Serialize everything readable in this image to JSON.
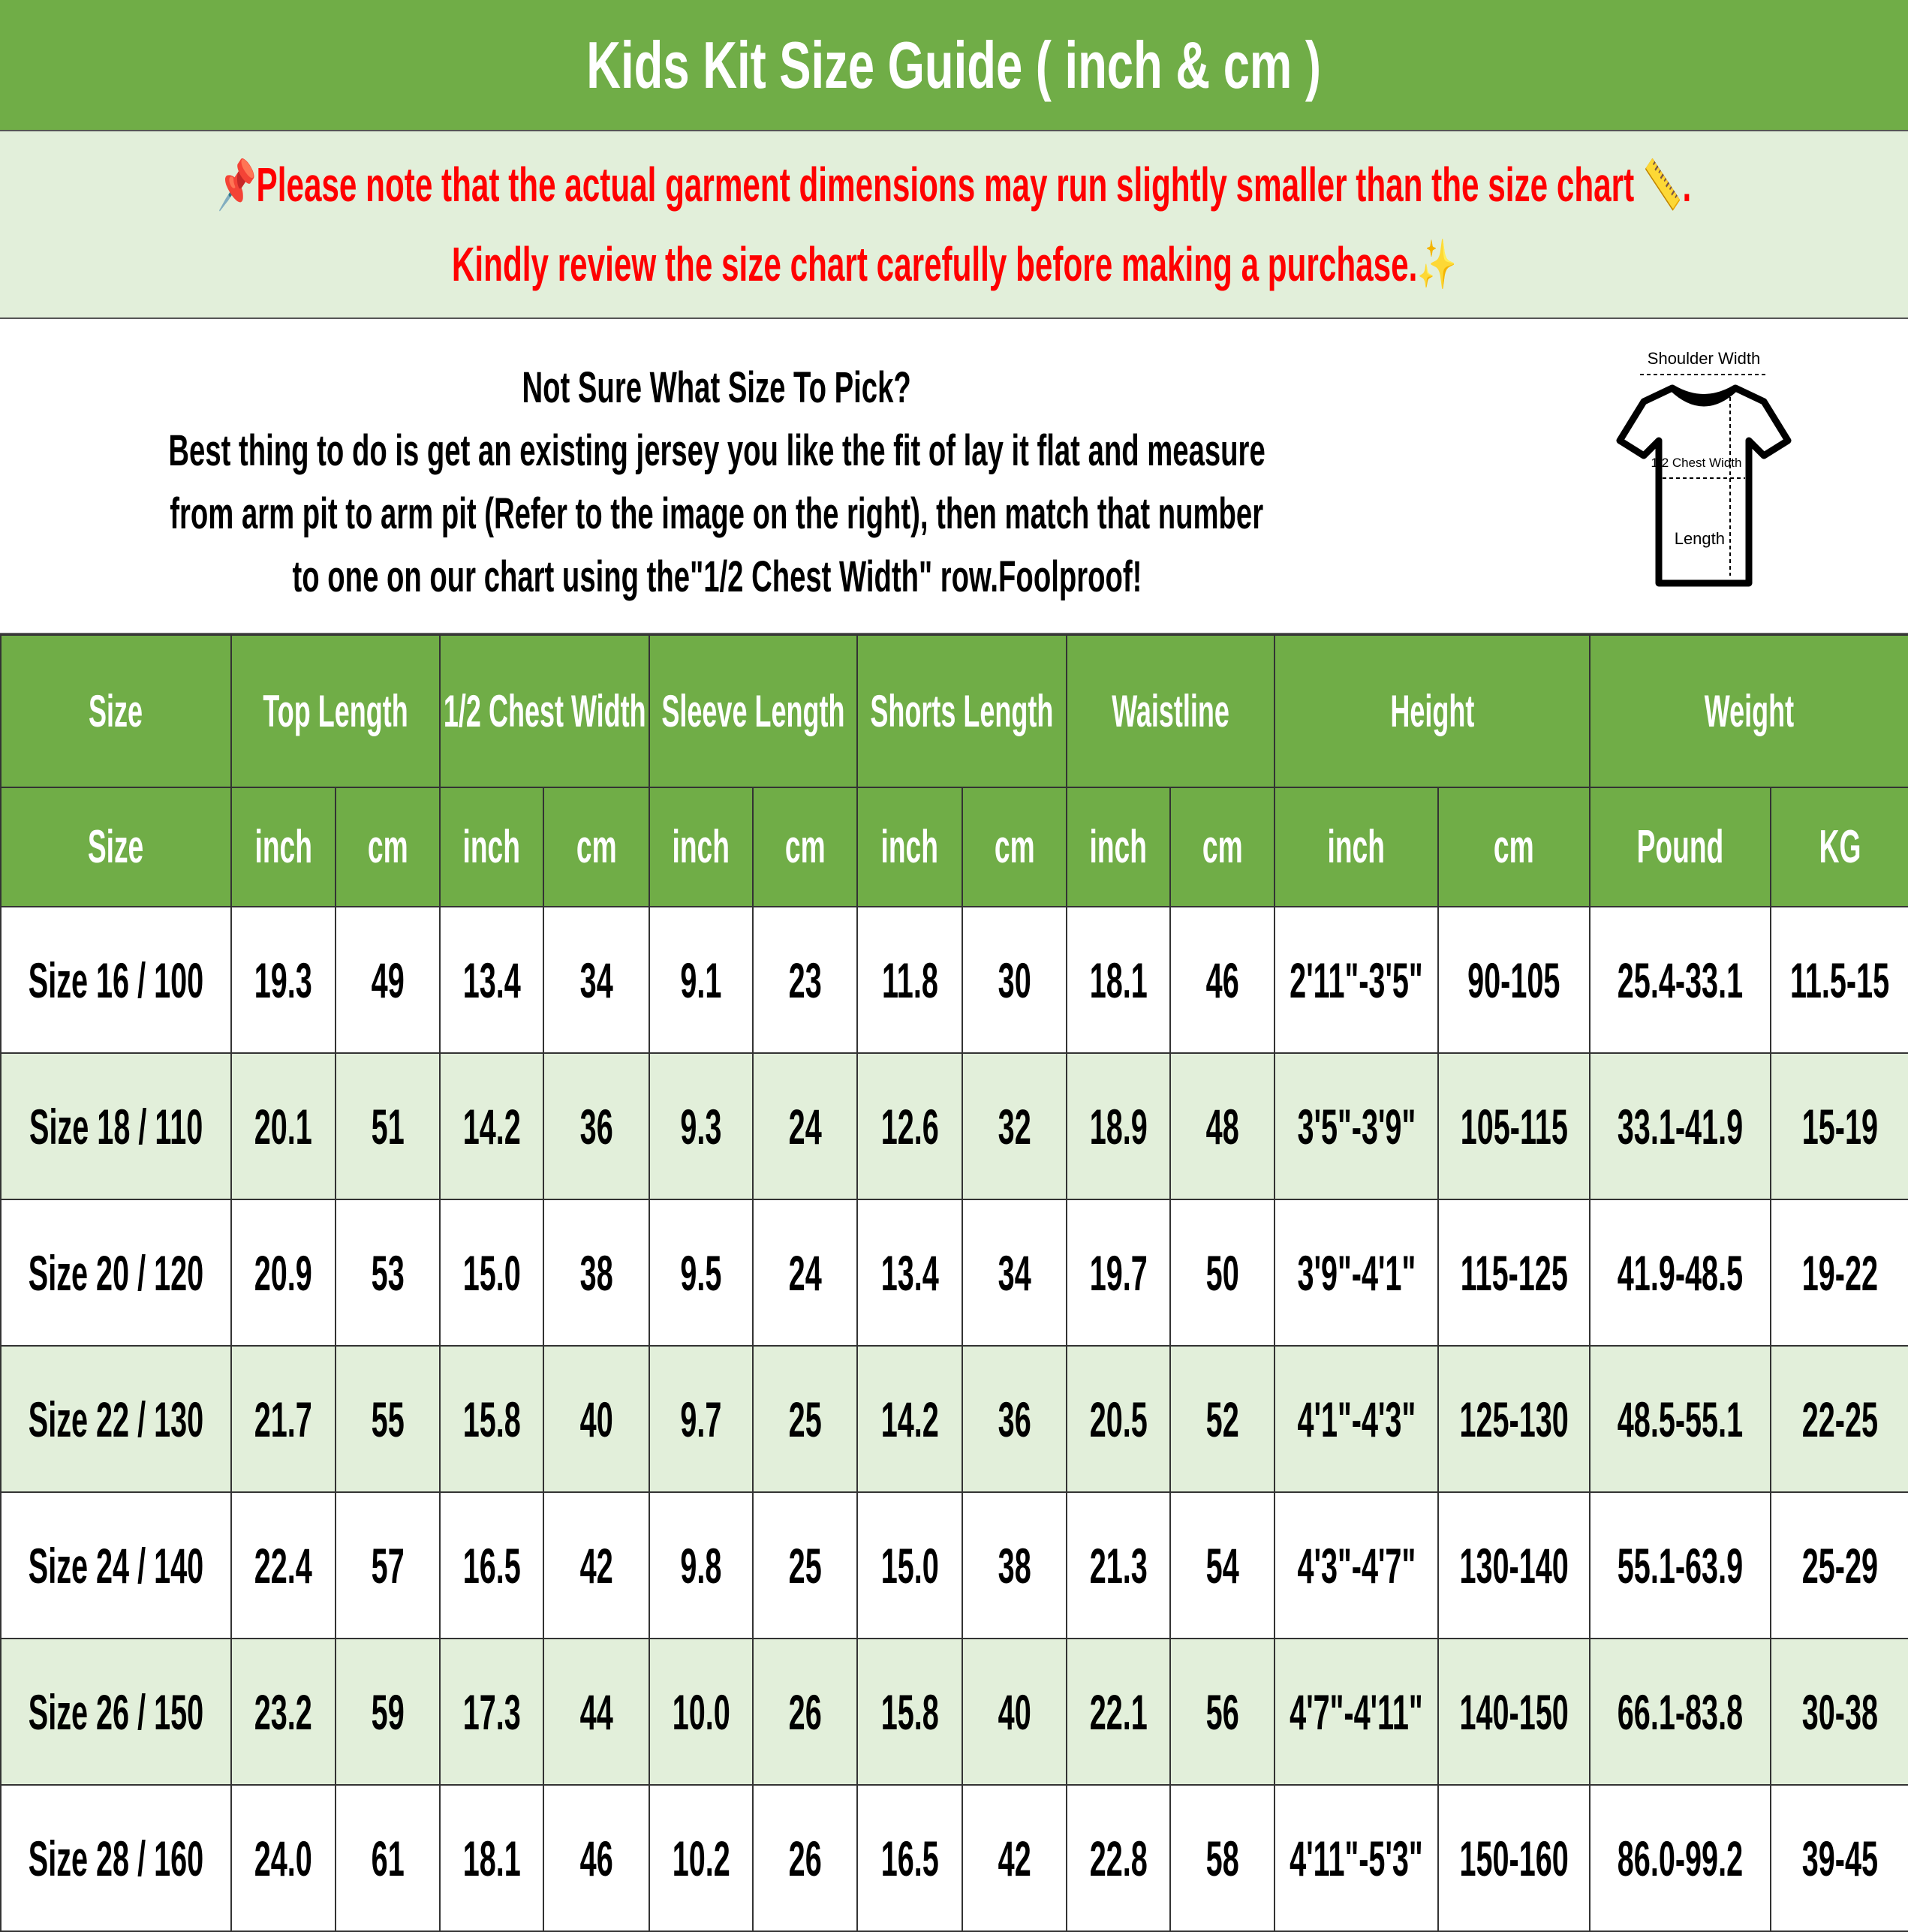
{
  "title": "Kids Kit Size Guide ( inch & cm )",
  "notice": {
    "line1": "Please note that the actual garment dimensions may run slightly smaller than the size chart",
    "line1_end": ".",
    "line2": "Kindly review the size chart carefully before making a purchase.",
    "icons": [
      "pushpin-icon",
      "ruler-icon",
      "sparkles-icon"
    ],
    "color": "#FF0000"
  },
  "info": {
    "heading": "Not Sure What Size To Pick?",
    "line1": "Best thing to do is get an existing jersey you like the fit of lay it flat and measure",
    "line2": "from arm pit to arm pit (Refer to the image on the right), then match that number",
    "line3": "to one on our chart using the\"1/2 Chest Width\" row.Foolproof!",
    "diagram": {
      "shoulder": "Shoulder Width",
      "chest": "1/2 Chest Width",
      "length": "Length"
    }
  },
  "colors": {
    "header_green": "#70AD47",
    "row_alt": "#E2EFDA"
  },
  "table": {
    "groups": [
      "Size",
      "Top Length",
      "1/2 Chest Width",
      "Sleeve Length",
      "Shorts Length",
      "Waistline",
      "Height",
      "Weight"
    ],
    "units": [
      "Size",
      "inch",
      "cm",
      "inch",
      "cm",
      "inch",
      "cm",
      "inch",
      "cm",
      "inch",
      "cm",
      "inch",
      "cm",
      "Pound",
      "KG"
    ],
    "rows": [
      [
        "Size 16 / 100",
        "19.3",
        "49",
        "13.4",
        "34",
        "9.1",
        "23",
        "11.8",
        "30",
        "18.1",
        "46",
        "2'11\"-3'5\"",
        "90-105",
        "25.4-33.1",
        "11.5-15"
      ],
      [
        "Size 18 / 110",
        "20.1",
        "51",
        "14.2",
        "36",
        "9.3",
        "24",
        "12.6",
        "32",
        "18.9",
        "48",
        "3'5\"-3'9\"",
        "105-115",
        "33.1-41.9",
        "15-19"
      ],
      [
        "Size 20 / 120",
        "20.9",
        "53",
        "15.0",
        "38",
        "9.5",
        "24",
        "13.4",
        "34",
        "19.7",
        "50",
        "3'9\"-4'1\"",
        "115-125",
        "41.9-48.5",
        "19-22"
      ],
      [
        "Size 22 / 130",
        "21.7",
        "55",
        "15.8",
        "40",
        "9.7",
        "25",
        "14.2",
        "36",
        "20.5",
        "52",
        "4'1\"-4'3\"",
        "125-130",
        "48.5-55.1",
        "22-25"
      ],
      [
        "Size 24 / 140",
        "22.4",
        "57",
        "16.5",
        "42",
        "9.8",
        "25",
        "15.0",
        "38",
        "21.3",
        "54",
        "4'3\"-4'7\"",
        "130-140",
        "55.1-63.9",
        "25-29"
      ],
      [
        "Size 26 / 150",
        "23.2",
        "59",
        "17.3",
        "44",
        "10.0",
        "26",
        "15.8",
        "40",
        "22.1",
        "56",
        "4'7\"-4'11\"",
        "140-150",
        "66.1-83.8",
        "30-38"
      ],
      [
        "Size 28 / 160",
        "24.0",
        "61",
        "18.1",
        "46",
        "10.2",
        "26",
        "16.5",
        "42",
        "22.8",
        "58",
        "4'11\"-5'3\"",
        "150-160",
        "86.0-99.2",
        "39-45"
      ]
    ]
  }
}
